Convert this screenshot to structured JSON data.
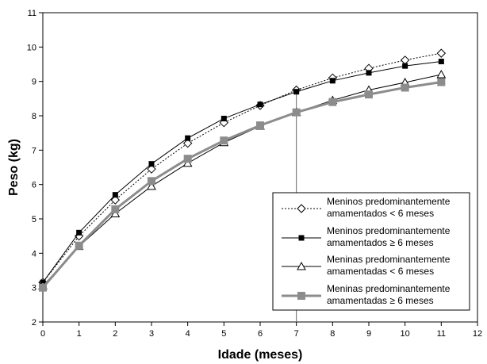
{
  "chart_data": {
    "type": "line",
    "xlabel": "Idade (meses)",
    "ylabel": "Peso (kg)",
    "xlim": [
      0,
      12
    ],
    "ylim": [
      2,
      11
    ],
    "xticks": [
      "0",
      "1",
      "2",
      "3",
      "4",
      "5",
      "6",
      "7",
      "8",
      "9",
      "10",
      "11",
      "12"
    ],
    "yticks": [
      "2",
      "3",
      "4",
      "5",
      "6",
      "7",
      "8",
      "9",
      "10",
      "11"
    ],
    "grid": false,
    "legend_position": "bottom-right",
    "reference_line_x": 7,
    "x": [
      0,
      1,
      2,
      3,
      4,
      5,
      6,
      7,
      8,
      9,
      10,
      11
    ],
    "series": [
      {
        "name_line1": "Meninos predominantemente",
        "name_line2": "amamentados < 6 meses",
        "marker": "diamond-open",
        "line": "dotted",
        "color": "#000000",
        "values": [
          3.15,
          4.5,
          5.55,
          6.45,
          7.2,
          7.8,
          8.3,
          8.75,
          9.1,
          9.38,
          9.62,
          9.82
        ]
      },
      {
        "name_line1": "Meninos predominantemente",
        "name_line2": "amamentados ≥ 6 meses",
        "marker": "square-filled",
        "line": "solid",
        "color": "#000000",
        "values": [
          3.15,
          4.6,
          5.7,
          6.6,
          7.35,
          7.92,
          8.33,
          8.7,
          9.02,
          9.25,
          9.45,
          9.58
        ]
      },
      {
        "name_line1": "Meninas predominantemente",
        "name_line2": "amamentadas < 6 meses",
        "marker": "triangle-open",
        "line": "solid",
        "color": "#000000",
        "values": [
          3.05,
          4.2,
          5.15,
          5.95,
          6.62,
          7.22,
          7.7,
          8.1,
          8.45,
          8.75,
          8.97,
          9.2
        ]
      },
      {
        "name_line1": "Meninas predominantemente",
        "name_line2": "amamentadas ≥ 6 meses",
        "marker": "square-filled-large",
        "line": "solid-thick",
        "color": "#8c8c8c",
        "values": [
          3.0,
          4.22,
          5.28,
          6.1,
          6.75,
          7.28,
          7.72,
          8.1,
          8.4,
          8.62,
          8.82,
          8.98
        ]
      }
    ]
  }
}
